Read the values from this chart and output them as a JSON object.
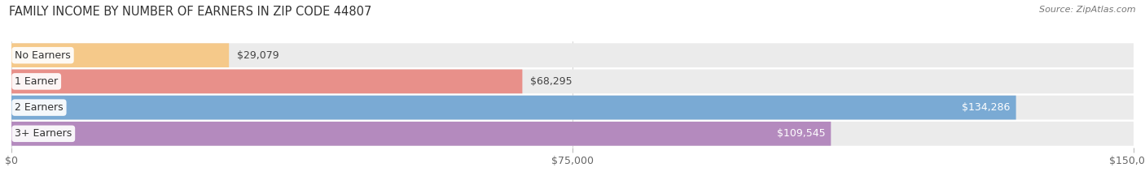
{
  "title": "FAMILY INCOME BY NUMBER OF EARNERS IN ZIP CODE 44807",
  "source": "Source: ZipAtlas.com",
  "categories": [
    "No Earners",
    "1 Earner",
    "2 Earners",
    "3+ Earners"
  ],
  "values": [
    29079,
    68295,
    134286,
    109545
  ],
  "bar_colors": [
    "#F5C98A",
    "#E8908A",
    "#7AAAD4",
    "#B48ABE"
  ],
  "max_value": 150000,
  "x_ticks": [
    0,
    75000,
    150000
  ],
  "x_tick_labels": [
    "$0",
    "$75,000",
    "$150,000"
  ],
  "value_labels": [
    "$29,079",
    "$68,295",
    "$134,286",
    "$109,545"
  ],
  "bar_bg_color": "#EBEBEB",
  "fig_bg_color": "#FFFFFF",
  "label_inside_threshold": 0.65,
  "bar_height": 0.72,
  "bar_gap": 0.06
}
